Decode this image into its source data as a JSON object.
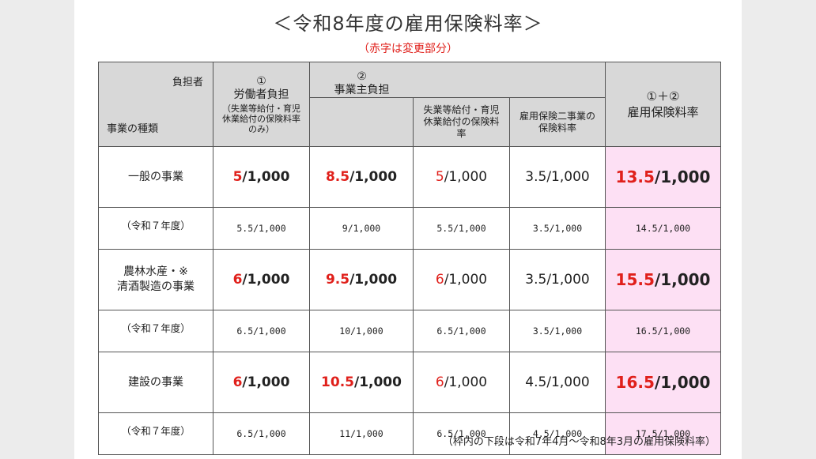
{
  "title": "＜令和8年度の雇用保険料率＞",
  "subtitle_note": "（赤字は変更部分）",
  "header": {
    "corner_top": "負担者",
    "corner_bottom": "事業の種類",
    "col1_num": "①",
    "col1_title": "労働者負担",
    "col1_note": "（失業等給付・育児休業給付の保険料率のみ）",
    "col2_num": "②",
    "col2_title": "事業主負担",
    "col2a_title": "失業等給付・育児休業給付の保険料率",
    "col2b_title": "雇用保険二事業の保険料率",
    "total_num": "①＋②",
    "total_title": "雇用保険料率"
  },
  "rows": [
    {
      "label": "一般の事業",
      "worker": {
        "red": "5",
        "rest": "/1,000"
      },
      "employer": {
        "red": "8.5",
        "rest": "/1,000"
      },
      "benefit": {
        "red": "5",
        "rest": "/1,000"
      },
      "two_projects": "3.5/1,000",
      "total": {
        "red": "13.5",
        "rest": "/1,000"
      },
      "prev_label": "（令和７年度）",
      "prev": [
        "5.5/1,000",
        "9/1,000",
        "5.5/1,000",
        "3.5/1,000",
        "14.5/1,000"
      ]
    },
    {
      "label": "農林水産・※\n清酒製造の事業",
      "worker": {
        "red": "6",
        "rest": "/1,000"
      },
      "employer": {
        "red": "9.5",
        "rest": "/1,000"
      },
      "benefit": {
        "red": "6",
        "rest": "/1,000"
      },
      "two_projects": "3.5/1,000",
      "total": {
        "red": "15.5",
        "rest": "/1,000"
      },
      "prev_label": "（令和７年度）",
      "prev": [
        "6.5/1,000",
        "10/1,000",
        "6.5/1,000",
        "3.5/1,000",
        "16.5/1,000"
      ]
    },
    {
      "label": "建設の事業",
      "worker": {
        "red": "6",
        "rest": "/1,000"
      },
      "employer": {
        "red": "10.5",
        "rest": "/1,000"
      },
      "benefit": {
        "red": "6",
        "rest": "/1,000"
      },
      "two_projects": "4.5/1,000",
      "total": {
        "red": "16.5",
        "rest": "/1,000"
      },
      "prev_label": "（令和７年度）",
      "prev": [
        "6.5/1,000",
        "11/1,000",
        "6.5/1,000",
        "4.5/1,000",
        "17.5/1,000"
      ]
    }
  ],
  "footnote": "（枠内の下段は令和7年4月～令和8年3月の雇用保険料率）",
  "colors": {
    "accent_red": "#e0201b",
    "total_bg": "#fde0f4",
    "header_bg": "#d8d8d8"
  }
}
